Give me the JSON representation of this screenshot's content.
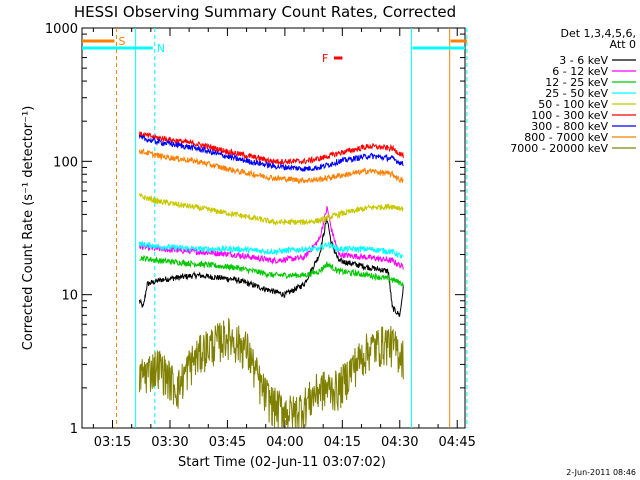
{
  "chart_data": {
    "type": "line",
    "title": "HESSI Observing Summary Count Rates, Corrected",
    "xlabel": "Start Time (02-Jun-11 03:07:02)",
    "ylabel": "Corrected Count Rate (s⁻¹ detector⁻¹)",
    "yscale": "log",
    "ylim": [
      1,
      1000
    ],
    "xlim_minutes": [
      0,
      100
    ],
    "x_ticks": [
      {
        "t": 7.97,
        "label": "03:15"
      },
      {
        "t": 22.97,
        "label": "03:30"
      },
      {
        "t": 37.97,
        "label": "03:45"
      },
      {
        "t": 52.97,
        "label": "04:00"
      },
      {
        "t": 67.97,
        "label": "04:15"
      },
      {
        "t": 82.97,
        "label": "04:30"
      },
      {
        "t": 97.97,
        "label": "04:45"
      }
    ],
    "y_ticks": [
      {
        "v": 1,
        "label": "1"
      },
      {
        "v": 10,
        "label": "10"
      },
      {
        "v": 100,
        "label": "100"
      },
      {
        "v": 1000,
        "label": "1000"
      }
    ],
    "legend_header": [
      "Det 1,3,4,5,6,",
      "Att 0"
    ],
    "legend_position": "right",
    "series": [
      {
        "name": "3 - 6 keV",
        "color": "#000000",
        "key": [
          [
            15,
            9
          ],
          [
            16,
            8
          ],
          [
            17,
            12
          ],
          [
            21,
            13
          ],
          [
            30,
            14
          ],
          [
            40,
            13
          ],
          [
            48,
            11
          ],
          [
            53,
            10
          ],
          [
            58,
            12
          ],
          [
            62,
            20
          ],
          [
            64,
            38
          ],
          [
            65,
            25
          ],
          [
            67,
            18
          ],
          [
            75,
            16
          ],
          [
            80,
            15
          ],
          [
            81,
            8
          ],
          [
            83,
            7
          ],
          [
            84,
            12
          ]
        ]
      },
      {
        "name": "6 - 12 keV",
        "color": "#ff00ff",
        "key": [
          [
            15,
            23
          ],
          [
            20,
            22
          ],
          [
            30,
            21
          ],
          [
            40,
            20
          ],
          [
            50,
            18
          ],
          [
            58,
            19
          ],
          [
            62,
            26
          ],
          [
            64,
            45
          ],
          [
            65,
            32
          ],
          [
            67,
            20
          ],
          [
            75,
            19
          ],
          [
            81,
            18
          ],
          [
            84,
            16
          ]
        ]
      },
      {
        "name": "12 - 25 keV",
        "color": "#00c800",
        "key": [
          [
            15,
            19
          ],
          [
            20,
            18
          ],
          [
            30,
            17
          ],
          [
            40,
            16
          ],
          [
            50,
            14
          ],
          [
            58,
            14
          ],
          [
            62,
            15
          ],
          [
            64,
            17
          ],
          [
            67,
            15
          ],
          [
            75,
            14
          ],
          [
            81,
            13
          ],
          [
            84,
            12
          ]
        ]
      },
      {
        "name": "25 - 50 keV",
        "color": "#00ffff",
        "key": [
          [
            15,
            24
          ],
          [
            20,
            23
          ],
          [
            30,
            22
          ],
          [
            40,
            22
          ],
          [
            50,
            21
          ],
          [
            58,
            22
          ],
          [
            62,
            22
          ],
          [
            64,
            24
          ],
          [
            67,
            22
          ],
          [
            75,
            22
          ],
          [
            81,
            21
          ],
          [
            84,
            19
          ]
        ]
      },
      {
        "name": "50 - 100 keV",
        "color": "#c8c800",
        "key": [
          [
            15,
            55
          ],
          [
            20,
            50
          ],
          [
            30,
            45
          ],
          [
            40,
            40
          ],
          [
            50,
            35
          ],
          [
            58,
            35
          ],
          [
            62,
            36
          ],
          [
            67,
            40
          ],
          [
            75,
            45
          ],
          [
            81,
            46
          ],
          [
            84,
            44
          ]
        ]
      },
      {
        "name": "100 - 300 keV",
        "color": "#ff0000",
        "key": [
          [
            15,
            160
          ],
          [
            20,
            150
          ],
          [
            30,
            135
          ],
          [
            40,
            115
          ],
          [
            50,
            100
          ],
          [
            58,
            100
          ],
          [
            62,
            105
          ],
          [
            67,
            115
          ],
          [
            75,
            130
          ],
          [
            81,
            125
          ],
          [
            84,
            110
          ]
        ]
      },
      {
        "name": "300 - 800 keV",
        "color": "#0000ff",
        "key": [
          [
            15,
            150
          ],
          [
            20,
            140
          ],
          [
            30,
            125
          ],
          [
            40,
            105
          ],
          [
            50,
            92
          ],
          [
            58,
            88
          ],
          [
            62,
            90
          ],
          [
            67,
            100
          ],
          [
            75,
            110
          ],
          [
            81,
            105
          ],
          [
            84,
            95
          ]
        ]
      },
      {
        "name": "800 - 7000 keV",
        "color": "#ff8000",
        "key": [
          [
            15,
            120
          ],
          [
            20,
            110
          ],
          [
            30,
            100
          ],
          [
            40,
            85
          ],
          [
            50,
            75
          ],
          [
            58,
            72
          ],
          [
            62,
            73
          ],
          [
            67,
            78
          ],
          [
            75,
            85
          ],
          [
            81,
            80
          ],
          [
            84,
            70
          ]
        ]
      },
      {
        "name": "7000 - 20000 keV",
        "color": "#808000",
        "key": [
          [
            15,
            2.5
          ],
          [
            20,
            3
          ],
          [
            25,
            2
          ],
          [
            28,
            3
          ],
          [
            32,
            4
          ],
          [
            38,
            5
          ],
          [
            43,
            4
          ],
          [
            47,
            2
          ],
          [
            50,
            1.5
          ],
          [
            55,
            1.3
          ],
          [
            58,
            1.5
          ],
          [
            62,
            2
          ],
          [
            67,
            2
          ],
          [
            71,
            3
          ],
          [
            75,
            4
          ],
          [
            80,
            4.5
          ],
          [
            84,
            3.5
          ]
        ]
      }
    ],
    "annotations": [
      {
        "label": "S",
        "color": "#ff8000",
        "t": [
          0,
          9
        ]
      },
      {
        "label": "N",
        "color": "#00ffff",
        "t": [
          0,
          19
        ]
      },
      {
        "label": "F",
        "color": "#ff0000",
        "t": [
          65,
          68
        ]
      }
    ],
    "timestamp": "2-Jun-2011 08:46"
  }
}
